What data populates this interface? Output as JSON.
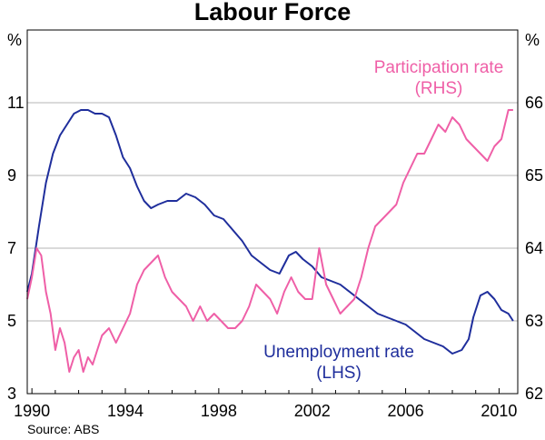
{
  "chart_data": {
    "type": "line",
    "title": "Labour Force",
    "left_unit": "%",
    "right_unit": "%",
    "source": "Source: ABS",
    "left_axis": {
      "min": 3,
      "max": 13,
      "ticks": [
        3,
        5,
        7,
        9,
        11
      ]
    },
    "right_axis": {
      "min": 62,
      "max": 67,
      "ticks": [
        62,
        63,
        64,
        65,
        66
      ]
    },
    "x_axis": {
      "min": 1989.8,
      "max": 2010.8,
      "tick_labels": [
        "1990",
        "1994",
        "1998",
        "2002",
        "2006",
        "2010"
      ]
    },
    "grid": true,
    "series": [
      {
        "name": "Unemployment rate",
        "label_line2": "(LHS)",
        "axis": "left",
        "color": "#1f2e9c",
        "x": [
          1989.8,
          1990.0,
          1990.3,
          1990.6,
          1990.9,
          1991.2,
          1991.5,
          1991.8,
          1992.1,
          1992.4,
          1992.7,
          1993.0,
          1993.3,
          1993.6,
          1993.9,
          1994.2,
          1994.5,
          1994.8,
          1995.1,
          1995.4,
          1995.8,
          1996.2,
          1996.6,
          1997.0,
          1997.4,
          1997.8,
          1998.2,
          1998.6,
          1999.0,
          1999.4,
          1999.8,
          2000.2,
          2000.6,
          2001.0,
          2001.3,
          2001.6,
          2002.0,
          2002.4,
          2002.8,
          2003.2,
          2003.6,
          2004.0,
          2004.4,
          2004.8,
          2005.2,
          2005.6,
          2006.0,
          2006.4,
          2006.8,
          2007.2,
          2007.6,
          2008.0,
          2008.4,
          2008.7,
          2008.9,
          2009.2,
          2009.5,
          2009.8,
          2010.1,
          2010.4,
          2010.6
        ],
        "y": [
          5.8,
          6.3,
          7.6,
          8.8,
          9.6,
          10.1,
          10.4,
          10.7,
          10.8,
          10.8,
          10.7,
          10.7,
          10.6,
          10.1,
          9.5,
          9.2,
          8.7,
          8.3,
          8.1,
          8.2,
          8.3,
          8.3,
          8.5,
          8.4,
          8.2,
          7.9,
          7.8,
          7.5,
          7.2,
          6.8,
          6.6,
          6.4,
          6.3,
          6.8,
          6.9,
          6.7,
          6.5,
          6.2,
          6.1,
          6.0,
          5.8,
          5.6,
          5.4,
          5.2,
          5.1,
          5.0,
          4.9,
          4.7,
          4.5,
          4.4,
          4.3,
          4.1,
          4.2,
          4.5,
          5.1,
          5.7,
          5.8,
          5.6,
          5.3,
          5.2,
          5.0
        ]
      },
      {
        "name": "Participation rate",
        "label_line2": "(RHS)",
        "axis": "right",
        "color": "#ef5fa7",
        "x": [
          1989.8,
          1990.0,
          1990.2,
          1990.4,
          1990.6,
          1990.8,
          1991.0,
          1991.2,
          1991.4,
          1991.6,
          1991.8,
          1992.0,
          1992.2,
          1992.4,
          1992.6,
          1992.8,
          1993.0,
          1993.3,
          1993.6,
          1993.9,
          1994.2,
          1994.5,
          1994.8,
          1995.1,
          1995.4,
          1995.7,
          1996.0,
          1996.3,
          1996.6,
          1996.9,
          1997.2,
          1997.5,
          1997.8,
          1998.1,
          1998.4,
          1998.7,
          1999.0,
          1999.3,
          1999.6,
          1999.9,
          2000.2,
          2000.5,
          2000.8,
          2001.1,
          2001.4,
          2001.7,
          2002.0,
          2002.3,
          2002.6,
          2002.9,
          2003.2,
          2003.5,
          2003.8,
          2004.1,
          2004.4,
          2004.7,
          2005.0,
          2005.3,
          2005.6,
          2005.9,
          2006.2,
          2006.5,
          2006.8,
          2007.1,
          2007.4,
          2007.7,
          2008.0,
          2008.3,
          2008.6,
          2008.9,
          2009.2,
          2009.5,
          2009.8,
          2010.1,
          2010.4,
          2010.6
        ],
        "y": [
          63.3,
          63.6,
          64.0,
          63.9,
          63.4,
          63.1,
          62.6,
          62.9,
          62.7,
          62.3,
          62.5,
          62.6,
          62.3,
          62.5,
          62.4,
          62.6,
          62.8,
          62.9,
          62.7,
          62.9,
          63.1,
          63.5,
          63.7,
          63.8,
          63.9,
          63.6,
          63.4,
          63.3,
          63.2,
          63.0,
          63.2,
          63.0,
          63.1,
          63.0,
          62.9,
          62.9,
          63.0,
          63.2,
          63.5,
          63.4,
          63.3,
          63.1,
          63.4,
          63.6,
          63.4,
          63.3,
          63.3,
          64.0,
          63.5,
          63.3,
          63.1,
          63.2,
          63.3,
          63.6,
          64.0,
          64.3,
          64.4,
          64.5,
          64.6,
          64.9,
          65.1,
          65.3,
          65.3,
          65.5,
          65.7,
          65.6,
          65.8,
          65.7,
          65.5,
          65.4,
          65.3,
          65.2,
          65.4,
          65.5,
          65.9,
          65.9
        ]
      }
    ]
  }
}
